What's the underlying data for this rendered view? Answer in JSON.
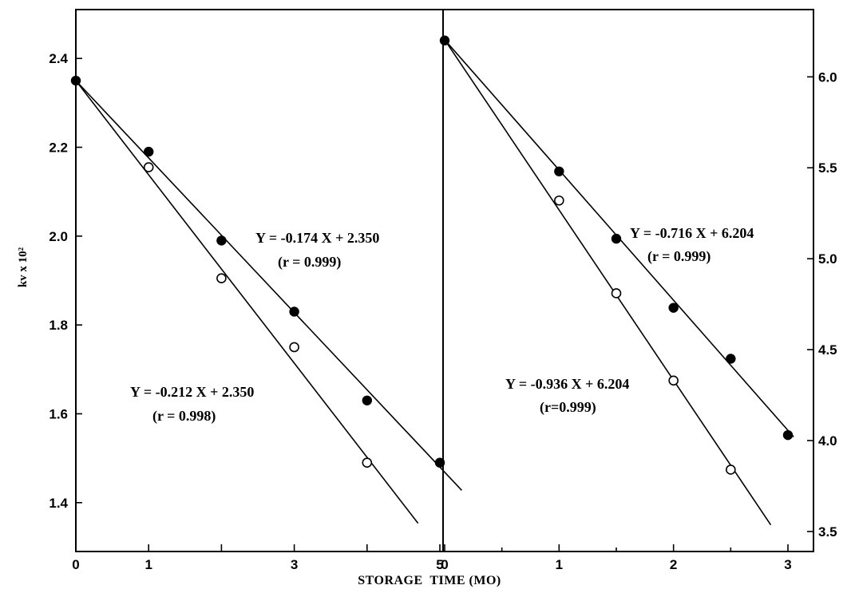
{
  "chart_data": [
    {
      "type": "scatter",
      "panel": "left",
      "xlabel": "STORAGE  TIME (MO)",
      "ylabel": "kv x 10²",
      "xlim": [
        0,
        5.4
      ],
      "ylim": [
        1.29,
        2.51
      ],
      "x_ticks": [
        0,
        1,
        2,
        3,
        4,
        5
      ],
      "x_tick_labels": [
        "0",
        "1",
        "",
        "3",
        "",
        "5"
      ],
      "y_ticks": [
        1.4,
        1.6,
        1.8,
        2.0,
        2.2,
        2.4
      ],
      "y_tick_labels": [
        "1.4",
        "1.6",
        "1.8",
        "2.0",
        "2.2",
        "2.4"
      ],
      "series": [
        {
          "marker": "filled",
          "x": [
            0,
            1,
            2,
            3,
            4,
            5
          ],
          "y": [
            2.35,
            2.19,
            1.99,
            1.83,
            1.63,
            1.49
          ],
          "fit": {
            "slope": -0.174,
            "intercept": 2.35,
            "x_end": 5.3
          }
        },
        {
          "marker": "open",
          "x": [
            1,
            2,
            3,
            4
          ],
          "y": [
            2.155,
            1.905,
            1.75,
            1.49
          ],
          "fit": {
            "slope": -0.212,
            "intercept": 2.35,
            "x_end": 4.7
          }
        }
      ],
      "annotations": [
        {
          "id": "eq-filled",
          "line1": "Y =  -0.174 X + 2.350",
          "line2": "(r = 0.999)"
        },
        {
          "id": "eq-open",
          "line1": "Y =  -0.212 X + 2.350",
          "line2": "(r = 0.998)"
        }
      ]
    },
    {
      "type": "scatter",
      "panel": "right",
      "xlim": [
        0,
        3.15
      ],
      "ylim": [
        3.39,
        6.37
      ],
      "y_axis_side": "right",
      "x_ticks": [
        0,
        1,
        2,
        3
      ],
      "x_tick_labels": [
        "0",
        "1",
        "2",
        "3"
      ],
      "x_minor_ticks": [
        0.5,
        1.5,
        2.5
      ],
      "y_ticks": [
        3.5,
        4.0,
        4.5,
        5.0,
        5.5,
        6.0
      ],
      "y_tick_labels": [
        "3.5",
        "4.0",
        "4.5",
        "5.0",
        "5.5",
        "6.0"
      ],
      "series": [
        {
          "marker": "filled",
          "x": [
            0,
            1,
            1.5,
            2,
            2.5,
            3
          ],
          "y": [
            6.2,
            5.48,
            5.11,
            4.73,
            4.45,
            4.03
          ],
          "fit": {
            "slope": -0.716,
            "intercept": 6.204,
            "x_end": 3.05
          }
        },
        {
          "marker": "open",
          "x": [
            1,
            1.5,
            2,
            2.5
          ],
          "y": [
            5.32,
            4.81,
            4.33,
            3.84
          ],
          "fit": {
            "slope": -0.936,
            "intercept": 6.204,
            "x_end": 2.85
          }
        }
      ],
      "annotations": [
        {
          "id": "eq-filled",
          "line1": "Y =  -0.716 X + 6.204",
          "line2": "(r = 0.999)"
        },
        {
          "id": "eq-open",
          "line1": "Y =  -0.936 X + 6.204",
          "line2": "(r=0.999)"
        }
      ]
    }
  ]
}
